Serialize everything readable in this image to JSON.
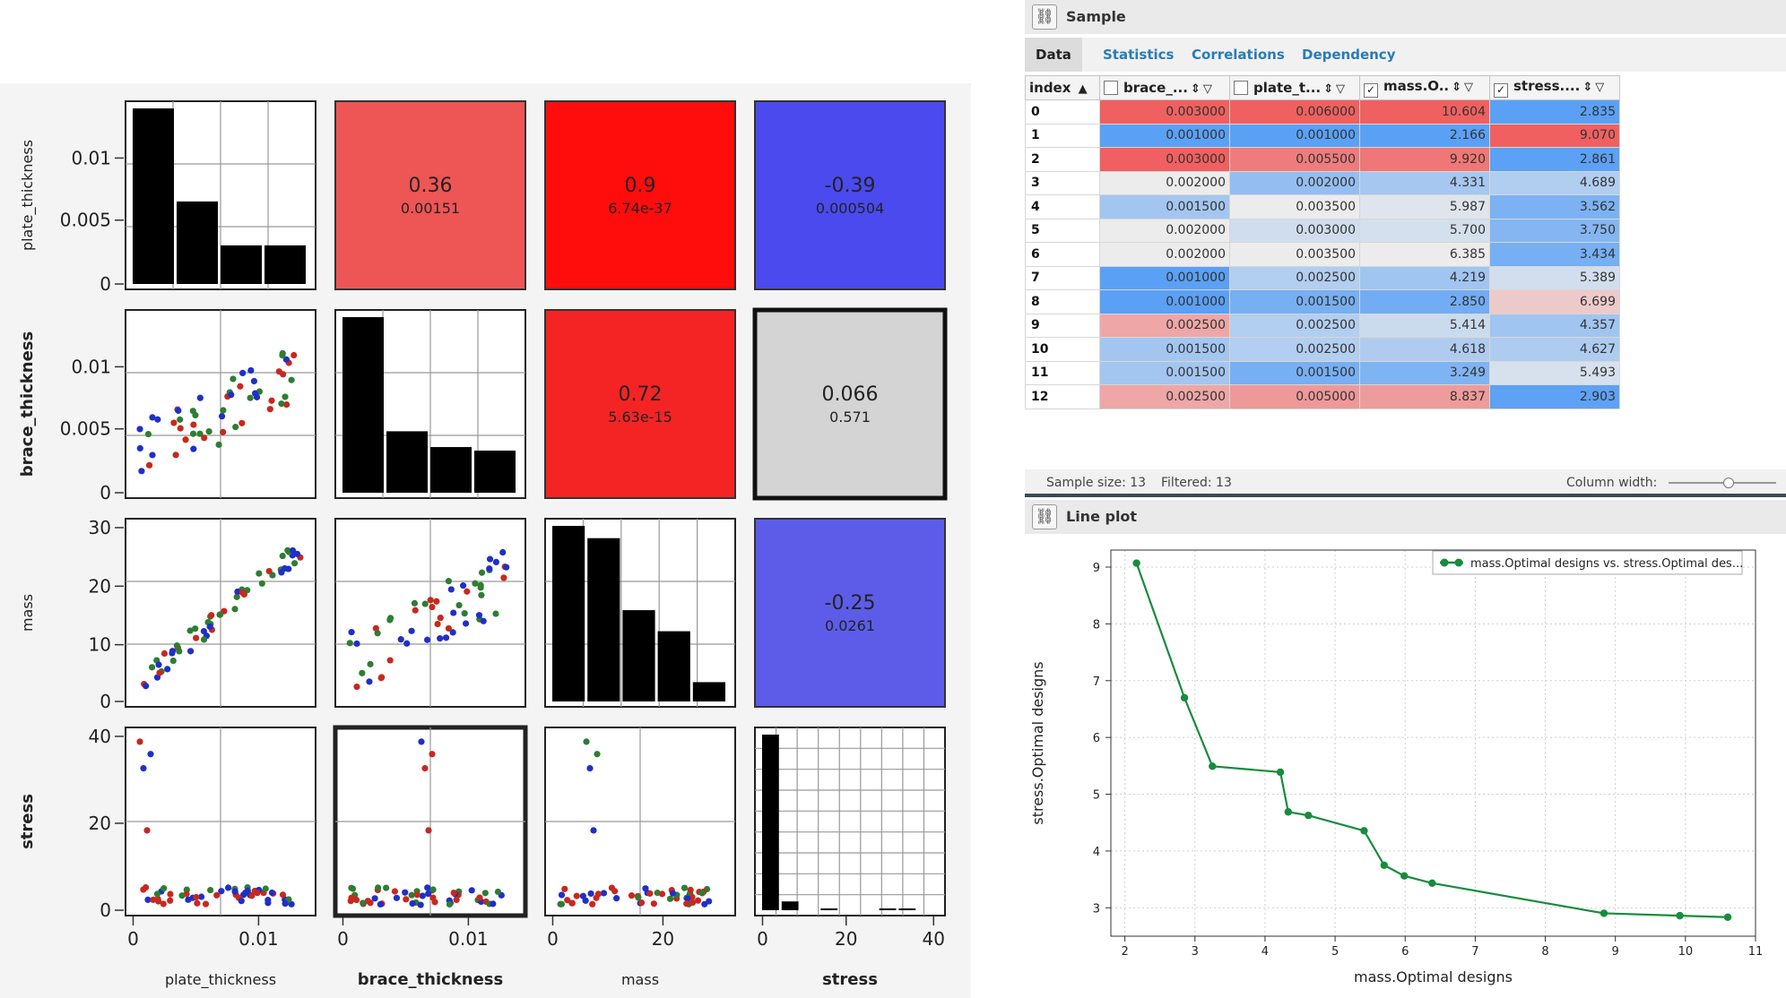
{
  "matrix": {
    "variables": [
      "plate_thickness",
      "brace_thickness",
      "mass",
      "stress"
    ],
    "variables_bold": [
      false,
      true,
      false,
      true
    ],
    "y_ticks": [
      [
        "0.01",
        "0.005",
        "0"
      ],
      [
        "0.01",
        "0.005",
        "0"
      ],
      [
        "30",
        "20",
        "10",
        "0"
      ],
      [
        "40",
        "20",
        "0"
      ]
    ],
    "x_ticks": [
      [
        "0",
        "0.01"
      ],
      [
        "0",
        "0.01"
      ],
      [
        "0",
        "20"
      ],
      [
        "0",
        "20",
        "40"
      ]
    ],
    "correlations": [
      {
        "row": 0,
        "col": 1,
        "r": "0.36",
        "p": "0.00151",
        "color": "#ee5555"
      },
      {
        "row": 0,
        "col": 2,
        "r": "0.9",
        "p": "6.74e-37",
        "color": "#ff0c0c"
      },
      {
        "row": 0,
        "col": 3,
        "r": "-0.39",
        "p": "0.000504",
        "color": "#4a4aee"
      },
      {
        "row": 1,
        "col": 2,
        "r": "0.72",
        "p": "5.63e-15",
        "color": "#f52424"
      },
      {
        "row": 1,
        "col": 3,
        "r": "0.066",
        "p": "0.571",
        "color": "#d4d4d4"
      },
      {
        "row": 2,
        "col": 3,
        "r": "-0.25",
        "p": "0.0261",
        "color": "#5c5ce8"
      }
    ],
    "histograms": [
      [
        1.0,
        0.47,
        0.22,
        0.22
      ],
      [
        1.0,
        0.35,
        0.26,
        0.24
      ],
      [
        1.0,
        0.93,
        0.52,
        0.4,
        0.11
      ],
      [
        1.0,
        0.05,
        0.0,
        0.01,
        0.0,
        0.0,
        0.01,
        0.01,
        0.0
      ]
    ],
    "point_colors": [
      "#1f2fc8",
      "#c8281e",
      "#2e7d32"
    ]
  },
  "sample_panel": {
    "title": "Sample",
    "pin_icon": "link-icon",
    "tabs": [
      "Data",
      "Statistics",
      "Correlations",
      "Dependency"
    ],
    "active_tab": "Data",
    "columns": [
      {
        "label": "index",
        "checkbox": false,
        "sort": "▲"
      },
      {
        "label": "brace_...",
        "checkbox": true,
        "checked": false
      },
      {
        "label": "plate_t...",
        "checkbox": true,
        "checked": false
      },
      {
        "label": "mass.O..",
        "checkbox": true,
        "checked": true
      },
      {
        "label": "stress....",
        "checkbox": true,
        "checked": true
      }
    ],
    "rows": [
      {
        "index": "0",
        "brace": "0.003000",
        "plate": "0.006000",
        "mass": "10.604",
        "stress": "2.835"
      },
      {
        "index": "1",
        "brace": "0.001000",
        "plate": "0.001000",
        "mass": "2.166",
        "stress": "9.070"
      },
      {
        "index": "2",
        "brace": "0.003000",
        "plate": "0.005500",
        "mass": "9.920",
        "stress": "2.861"
      },
      {
        "index": "3",
        "brace": "0.002000",
        "plate": "0.002000",
        "mass": "4.331",
        "stress": "4.689"
      },
      {
        "index": "4",
        "brace": "0.001500",
        "plate": "0.003500",
        "mass": "5.987",
        "stress": "3.562"
      },
      {
        "index": "5",
        "brace": "0.002000",
        "plate": "0.003000",
        "mass": "5.700",
        "stress": "3.750"
      },
      {
        "index": "6",
        "brace": "0.002000",
        "plate": "0.003500",
        "mass": "6.385",
        "stress": "3.434"
      },
      {
        "index": "7",
        "brace": "0.001000",
        "plate": "0.002500",
        "mass": "4.219",
        "stress": "5.389"
      },
      {
        "index": "8",
        "brace": "0.001000",
        "plate": "0.001500",
        "mass": "2.850",
        "stress": "6.699"
      },
      {
        "index": "9",
        "brace": "0.002500",
        "plate": "0.002500",
        "mass": "5.414",
        "stress": "4.357"
      },
      {
        "index": "10",
        "brace": "0.001500",
        "plate": "0.002500",
        "mass": "4.618",
        "stress": "4.627"
      },
      {
        "index": "11",
        "brace": "0.001500",
        "plate": "0.001500",
        "mass": "3.249",
        "stress": "5.493"
      },
      {
        "index": "12",
        "brace": "0.002500",
        "plate": "0.005000",
        "mass": "8.837",
        "stress": "2.903"
      }
    ],
    "sample_size": "Sample size: 13",
    "filtered": "Filtered: 13",
    "column_width_label": "Column width:",
    "column_width_fraction": 0.55
  },
  "lineplot_panel": {
    "title": "Line plot",
    "pin_icon": "link-icon",
    "legend": "mass.Optimal designs vs. stress.Optimal des...",
    "series_color": "#178c3c",
    "chart_data": {
      "type": "line",
      "xlabel": "mass.Optimal designs",
      "ylabel": "stress.Optimal designs",
      "xlim": [
        1.8,
        11.0
      ],
      "ylim": [
        2.5,
        9.3
      ],
      "xticks": [
        2,
        3,
        4,
        5,
        6,
        7,
        8,
        9,
        10,
        11
      ],
      "yticks": [
        3,
        4,
        5,
        6,
        7,
        8,
        9
      ],
      "grid": true,
      "legend_position": "top-right",
      "series": [
        {
          "x": [
            2.166,
            2.85,
            3.249,
            4.219,
            4.331,
            4.618,
            5.414,
            5.7,
            5.987,
            6.385,
            8.837,
            9.92,
            10.604
          ],
          "y": [
            9.07,
            6.699,
            5.493,
            5.389,
            4.689,
            4.627,
            4.357,
            3.75,
            3.562,
            3.434,
            2.903,
            2.861,
            2.835
          ]
        }
      ]
    }
  }
}
